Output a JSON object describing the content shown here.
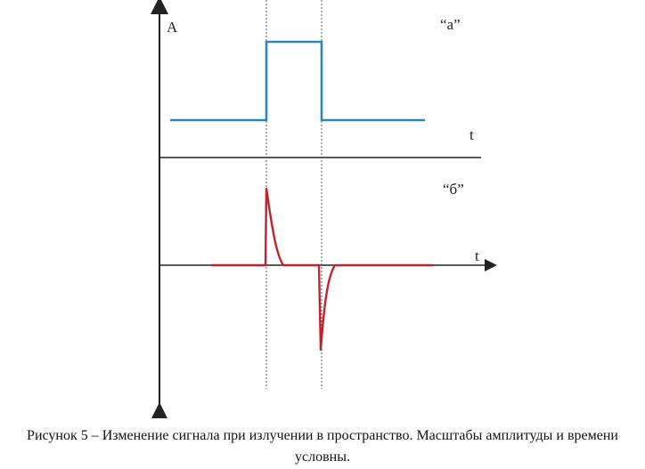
{
  "figure": {
    "y_axis_label": "A",
    "top_panel": {
      "label": "“a”",
      "time_label": "t"
    },
    "bottom_panel": {
      "label": "“б”",
      "time_label": "t"
    }
  },
  "colors": {
    "pulse": "#2f86b4",
    "response": "#c0232b",
    "axis": "#222222",
    "guide": "#555555"
  },
  "caption": "Рисунок 5 – Изменение сигнала при излучении в пространство. Масштабы амплитуды и времени условны."
}
